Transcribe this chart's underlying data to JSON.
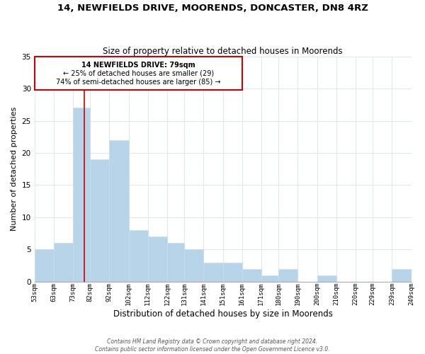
{
  "title": "14, NEWFIELDS DRIVE, MOORENDS, DONCASTER, DN8 4RZ",
  "subtitle": "Size of property relative to detached houses in Moorends",
  "xlabel": "Distribution of detached houses by size in Moorends",
  "ylabel": "Number of detached properties",
  "bar_color": "#b8d4e8",
  "bar_edge_color": "#c8dff0",
  "vline_color": "#cc0000",
  "vline_x": 79,
  "bin_edges": [
    53,
    63,
    73,
    82,
    92,
    102,
    112,
    122,
    131,
    141,
    151,
    161,
    171,
    180,
    190,
    200,
    210,
    220,
    229,
    239,
    249
  ],
  "bin_labels": [
    "53sqm",
    "63sqm",
    "73sqm",
    "82sqm",
    "92sqm",
    "102sqm",
    "112sqm",
    "122sqm",
    "131sqm",
    "141sqm",
    "151sqm",
    "161sqm",
    "171sqm",
    "180sqm",
    "190sqm",
    "200sqm",
    "210sqm",
    "220sqm",
    "229sqm",
    "239sqm",
    "249sqm"
  ],
  "counts": [
    5,
    6,
    27,
    19,
    22,
    8,
    7,
    6,
    5,
    3,
    3,
    2,
    1,
    2,
    0,
    1,
    0,
    0,
    0,
    2
  ],
  "ylim": [
    0,
    35
  ],
  "yticks": [
    0,
    5,
    10,
    15,
    20,
    25,
    30,
    35
  ],
  "annotation_title": "14 NEWFIELDS DRIVE: 79sqm",
  "annotation_line1": "← 25% of detached houses are smaller (29)",
  "annotation_line2": "74% of semi-detached houses are larger (85) →",
  "annotation_box_color": "#ffffff",
  "annotation_box_edge": "#cc0000",
  "footer_line1": "Contains HM Land Registry data © Crown copyright and database right 2024.",
  "footer_line2": "Contains public sector information licensed under the Open Government Licence v3.0.",
  "background_color": "#ffffff",
  "grid_color": "#dce8f0"
}
